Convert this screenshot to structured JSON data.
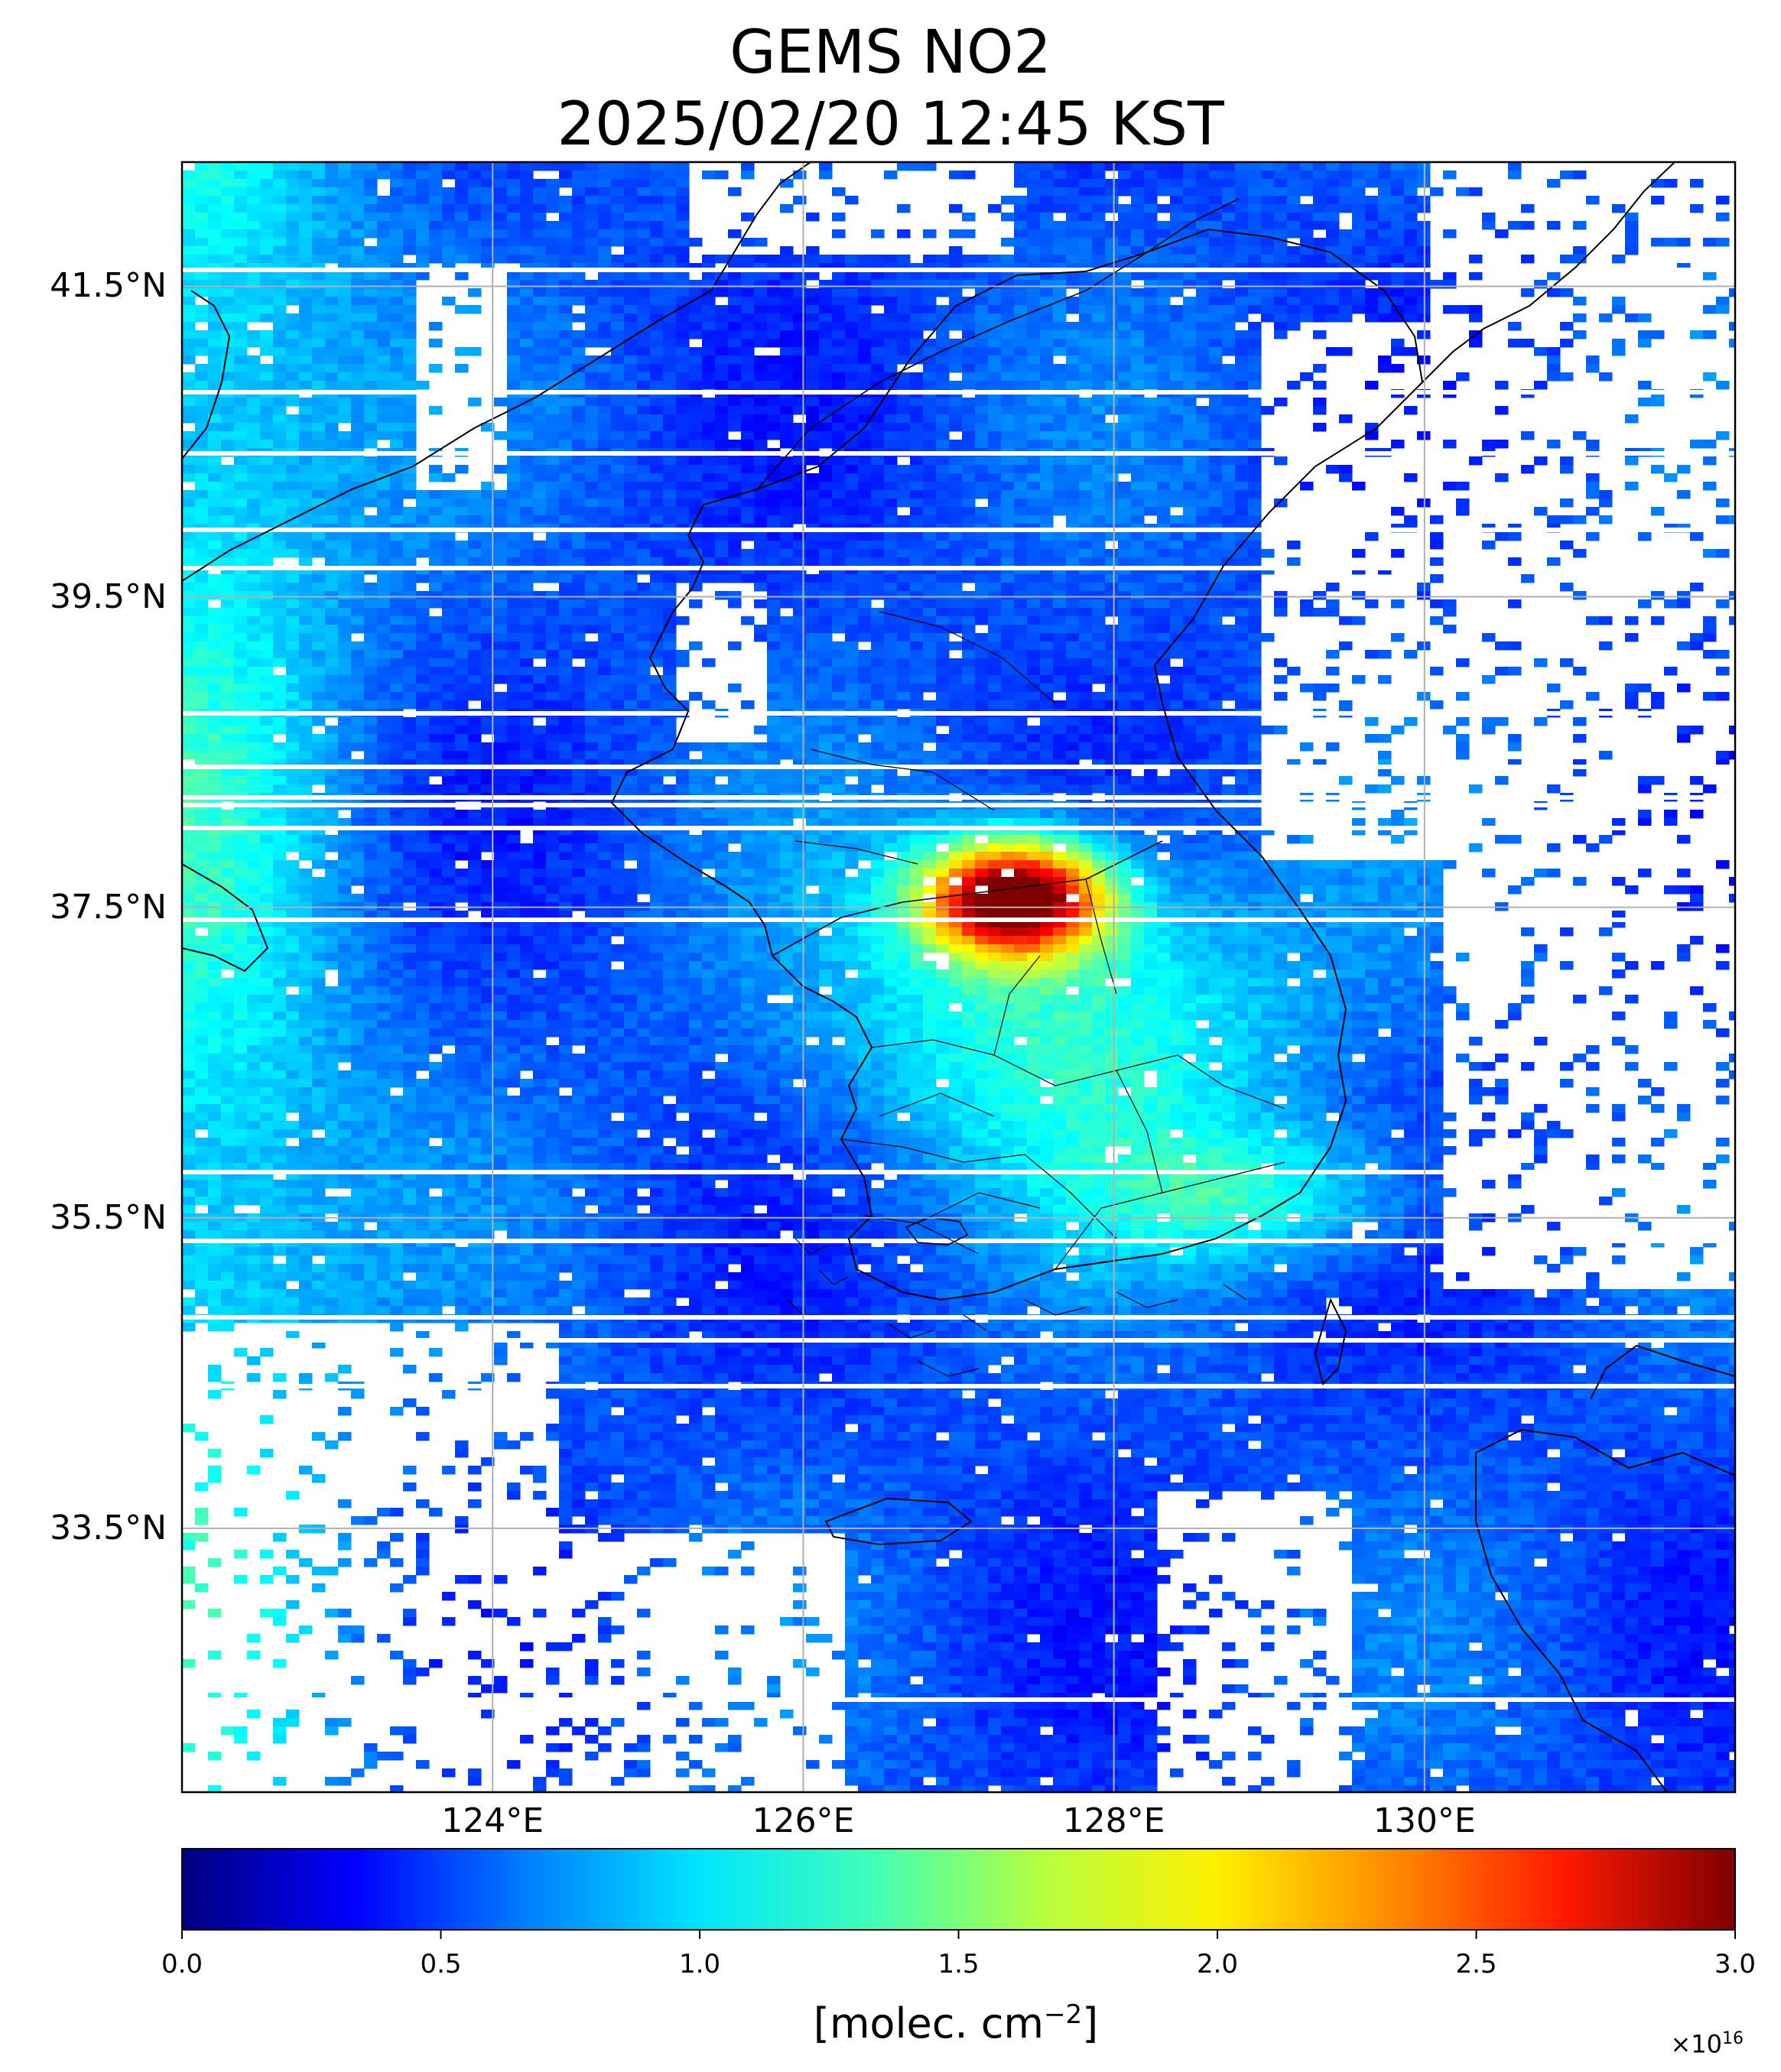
{
  "title": {
    "line1": "GEMS NO2",
    "line2": "2025/02/20 12:45 KST"
  },
  "map": {
    "lon_range": [
      122.0,
      132.0
    ],
    "lat_range": [
      31.8,
      42.3
    ],
    "lat_ticks": [
      {
        "value": 41.5,
        "label": "41.5°N"
      },
      {
        "value": 39.5,
        "label": "39.5°N"
      },
      {
        "value": 37.5,
        "label": "37.5°N"
      },
      {
        "value": 35.5,
        "label": "35.5°N"
      },
      {
        "value": 33.5,
        "label": "33.5°N"
      }
    ],
    "lon_ticks": [
      {
        "value": 124,
        "label": "124°E"
      },
      {
        "value": 126,
        "label": "126°E"
      },
      {
        "value": 128,
        "label": "128°E"
      },
      {
        "value": 130,
        "label": "130°E"
      }
    ],
    "grid": true,
    "colormap": "jet",
    "peak_region": "Seoul metropolitan area"
  },
  "colorbar": {
    "min": 0.0,
    "max": 3.0,
    "ticks": [
      "0.0",
      "0.5",
      "1.0",
      "1.5",
      "2.0",
      "2.5",
      "3.0"
    ],
    "units_base": "[molec. cm",
    "units_exp": "−2",
    "units_close": "]",
    "multiplier_base": "×10",
    "multiplier_exp": "16",
    "stops": [
      "#00007f",
      "#0000ff",
      "#007fff",
      "#00e5ff",
      "#3fffb7",
      "#b7ff3f",
      "#ffef00",
      "#ff8c00",
      "#ff1a00",
      "#7f0000"
    ]
  }
}
